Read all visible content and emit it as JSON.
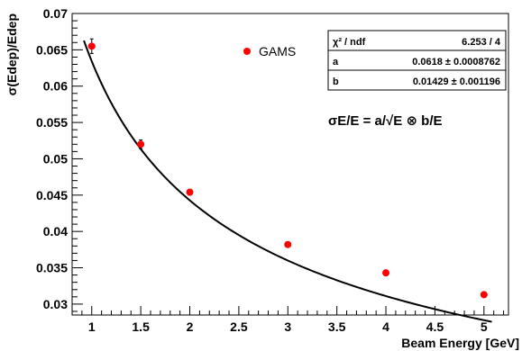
{
  "chart_data": {
    "type": "scatter",
    "xlabel": "Beam Energy [GeV]",
    "ylabel": "σ(Edep)/Edep",
    "xlim": [
      0.8,
      5.25
    ],
    "ylim": [
      0.0285,
      0.07
    ],
    "x_ticks": [
      1,
      1.5,
      2,
      2.5,
      3,
      3.5,
      4,
      4.5,
      5
    ],
    "x_tick_labels": [
      "1",
      "1.5",
      "2",
      "2.5",
      "3",
      "3.5",
      "4",
      "4.5",
      "5"
    ],
    "y_ticks": [
      0.03,
      0.035,
      0.04,
      0.045,
      0.05,
      0.055,
      0.06,
      0.065,
      0.07
    ],
    "y_tick_labels": [
      "0.03",
      "0.035",
      "0.04",
      "0.045",
      "0.05",
      "0.055",
      "0.06",
      "0.065",
      "0.07"
    ],
    "grid": false,
    "legend_position": "top-center",
    "series": [
      {
        "name": "GAMS",
        "color": "#ff0000",
        "x": [
          1,
          1.5,
          2,
          3,
          4,
          5
        ],
        "y": [
          0.0655,
          0.052,
          0.0454,
          0.0382,
          0.0343,
          0.0313
        ],
        "yerr": [
          0.001,
          0.0006,
          0.0004,
          0.0003,
          0.0003,
          0.0003
        ]
      }
    ],
    "fit": {
      "color": "#000000",
      "x_range": [
        0.92,
        5.08
      ],
      "a": 0.0618,
      "b": 0.01429
    },
    "stats_box": {
      "rows": [
        {
          "label": "χ² / ndf",
          "value": "6.253 / 4"
        },
        {
          "label": "a",
          "value": "0.0618 ± 0.0008762"
        },
        {
          "label": "b",
          "value": "0.01429 ± 0.001196"
        }
      ]
    },
    "formula": "σE/E = a/√E ⊗ b/E"
  }
}
